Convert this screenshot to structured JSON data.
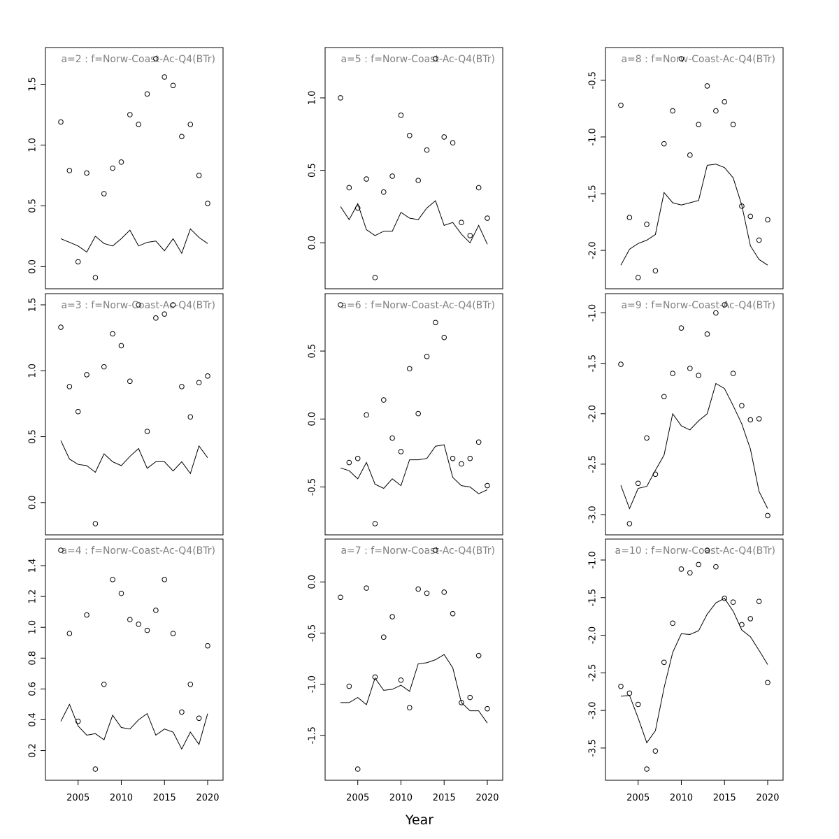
{
  "figure": {
    "xlabel": "Year"
  },
  "colors": {
    "axis": "#000000",
    "panel_title": "#808080",
    "line": "#000000",
    "points": "#000000"
  },
  "chart_data": [
    {
      "type": "scatter+line",
      "title": "a=2  :  f=Norw-Coast-Ac-Q4(BTr)",
      "x": [
        2003,
        2004,
        2005,
        2006,
        2007,
        2008,
        2009,
        2010,
        2011,
        2012,
        2013,
        2014,
        2015,
        2016,
        2017,
        2018,
        2019,
        2020
      ],
      "points": [
        1.19,
        0.79,
        0.04,
        0.77,
        -0.09,
        0.6,
        0.81,
        0.86,
        1.25,
        1.17,
        1.42,
        1.71,
        1.56,
        1.49,
        1.07,
        1.17,
        0.75,
        0.52
      ],
      "line": [
        0.23,
        0.2,
        0.17,
        0.12,
        0.25,
        0.19,
        0.17,
        0.23,
        0.3,
        0.17,
        0.2,
        0.21,
        0.13,
        0.23,
        0.11,
        0.31,
        0.24,
        0.19
      ],
      "yticks": [
        "0.0",
        "0.5",
        "1.0",
        "1.5"
      ]
    },
    {
      "type": "scatter+line",
      "title": "a=5  :  f=Norw-Coast-Ac-Q4(BTr)",
      "x": [
        2003,
        2004,
        2005,
        2006,
        2007,
        2008,
        2009,
        2010,
        2011,
        2012,
        2013,
        2014,
        2015,
        2016,
        2017,
        2018,
        2019,
        2020
      ],
      "points": [
        1.0,
        0.38,
        0.24,
        0.44,
        -0.24,
        0.35,
        0.46,
        0.88,
        0.74,
        0.43,
        0.64,
        1.27,
        0.73,
        0.69,
        0.14,
        0.05,
        0.38,
        0.17
      ],
      "line": [
        0.25,
        0.16,
        0.27,
        0.09,
        0.05,
        0.08,
        0.08,
        0.21,
        0.17,
        0.16,
        0.24,
        0.29,
        0.12,
        0.14,
        0.06,
        0.0,
        0.12,
        -0.01
      ],
      "yticks": [
        "0.0",
        "0.5",
        "1.0"
      ]
    },
    {
      "type": "scatter+line",
      "title": "a=8  :  f=Norw-Coast-Ac-Q4(BTr)",
      "x": [
        2003,
        2004,
        2005,
        2006,
        2007,
        2008,
        2009,
        2010,
        2011,
        2012,
        2013,
        2014,
        2015,
        2016,
        2017,
        2018,
        2019,
        2020
      ],
      "points": [
        -0.72,
        -1.71,
        -2.24,
        -1.77,
        -2.18,
        -1.06,
        -0.77,
        -0.31,
        -1.16,
        -0.89,
        -0.55,
        -0.77,
        -0.69,
        -0.89,
        -1.61,
        -1.7,
        -1.91,
        -1.73
      ],
      "line": [
        -2.13,
        -1.99,
        -1.94,
        -1.91,
        -1.86,
        -1.49,
        -1.58,
        -1.6,
        -1.58,
        -1.56,
        -1.25,
        -1.24,
        -1.27,
        -1.36,
        -1.6,
        -1.96,
        -2.08,
        -2.13
      ],
      "yticks": [
        "-2.0",
        "-1.5",
        "-1.0",
        "-0.5"
      ]
    },
    {
      "type": "scatter+line",
      "title": "a=3  :  f=Norw-Coast-Ac-Q4(BTr)",
      "x": [
        2003,
        2004,
        2005,
        2006,
        2007,
        2008,
        2009,
        2010,
        2011,
        2012,
        2013,
        2014,
        2015,
        2016,
        2017,
        2018,
        2019,
        2020
      ],
      "points": [
        1.33,
        0.88,
        0.69,
        0.97,
        -0.16,
        1.03,
        1.28,
        1.19,
        0.92,
        1.5,
        0.54,
        1.4,
        1.43,
        1.5,
        0.88,
        0.65,
        0.91,
        0.96
      ],
      "line": [
        0.47,
        0.33,
        0.29,
        0.28,
        0.23,
        0.37,
        0.31,
        0.28,
        0.35,
        0.41,
        0.26,
        0.31,
        0.31,
        0.24,
        0.31,
        0.22,
        0.43,
        0.34
      ],
      "yticks": [
        "0.0",
        "0.5",
        "1.0",
        "1.5"
      ]
    },
    {
      "type": "scatter+line",
      "title": "a=6  :  f=Norw-Coast-Ac-Q4(BTr)",
      "x": [
        2003,
        2004,
        2005,
        2006,
        2007,
        2008,
        2009,
        2010,
        2011,
        2012,
        2013,
        2014,
        2015,
        2016,
        2017,
        2018,
        2019,
        2020
      ],
      "points": [
        0.84,
        -0.32,
        -0.29,
        0.03,
        -0.77,
        0.14,
        -0.14,
        -0.24,
        0.37,
        0.04,
        0.46,
        0.71,
        0.6,
        -0.29,
        -0.33,
        -0.29,
        -0.17,
        -0.49
      ],
      "line": [
        -0.36,
        -0.38,
        -0.44,
        -0.32,
        -0.48,
        -0.51,
        -0.44,
        -0.49,
        -0.3,
        -0.3,
        -0.29,
        -0.2,
        -0.19,
        -0.43,
        -0.49,
        -0.5,
        -0.55,
        -0.52
      ],
      "yticks": [
        "-0.5",
        "0.0",
        "0.5"
      ]
    },
    {
      "type": "scatter+line",
      "title": "a=9  :  f=Norw-Coast-Ac-Q4(BTr)",
      "x": [
        2003,
        2004,
        2005,
        2006,
        2007,
        2008,
        2009,
        2010,
        2011,
        2012,
        2013,
        2014,
        2015,
        2016,
        2017,
        2018,
        2019,
        2020
      ],
      "points": [
        -1.51,
        -3.09,
        -2.69,
        -2.24,
        -2.6,
        -1.83,
        -1.6,
        -1.15,
        -1.55,
        -1.62,
        -1.21,
        -1.0,
        -0.92,
        -1.6,
        -1.92,
        -2.06,
        -2.05,
        -3.01
      ],
      "line": [
        -2.71,
        -2.94,
        -2.74,
        -2.72,
        -2.56,
        -2.41,
        -2.0,
        -2.12,
        -2.16,
        -2.07,
        -2.0,
        -1.7,
        -1.75,
        -1.92,
        -2.1,
        -2.35,
        -2.77,
        -2.94
      ],
      "yticks": [
        "-3.0",
        "-2.5",
        "-2.0",
        "-1.5",
        "-1.0"
      ]
    },
    {
      "type": "scatter+line",
      "title": "a=4  :  f=Norw-Coast-Ac-Q4(BTr)",
      "x": [
        2003,
        2004,
        2005,
        2006,
        2007,
        2008,
        2009,
        2010,
        2011,
        2012,
        2013,
        2014,
        2015,
        2016,
        2017,
        2018,
        2019,
        2020
      ],
      "points": [
        1.5,
        0.96,
        0.39,
        1.08,
        0.08,
        0.63,
        1.31,
        1.22,
        1.05,
        1.02,
        0.98,
        1.11,
        1.31,
        0.96,
        0.45,
        0.63,
        0.41,
        0.88
      ],
      "line": [
        0.39,
        0.5,
        0.36,
        0.3,
        0.31,
        0.27,
        0.43,
        0.35,
        0.34,
        0.4,
        0.44,
        0.3,
        0.34,
        0.32,
        0.21,
        0.32,
        0.24,
        0.44
      ],
      "yticks": [
        "0.2",
        "0.4",
        "0.6",
        "0.8",
        "1.0",
        "1.2",
        "1.4"
      ]
    },
    {
      "type": "scatter+line",
      "title": "a=7  :  f=Norw-Coast-Ac-Q4(BTr)",
      "x": [
        2003,
        2004,
        2005,
        2006,
        2007,
        2008,
        2009,
        2010,
        2011,
        2012,
        2013,
        2014,
        2015,
        2016,
        2017,
        2018,
        2019,
        2020
      ],
      "points": [
        -0.15,
        -1.02,
        -1.83,
        -0.06,
        -0.93,
        -0.54,
        -0.34,
        -0.96,
        -1.23,
        -0.07,
        -0.11,
        0.31,
        -0.1,
        -0.31,
        -1.18,
        -1.13,
        -0.72,
        -1.24
      ],
      "line": [
        -1.18,
        -1.18,
        -1.13,
        -1.2,
        -0.94,
        -1.06,
        -1.05,
        -1.01,
        -1.07,
        -0.8,
        -0.79,
        -0.76,
        -0.71,
        -0.84,
        -1.18,
        -1.26,
        -1.26,
        -1.38
      ],
      "yticks": [
        "-1.5",
        "-1.0",
        "-0.5",
        "0.0"
      ]
    },
    {
      "type": "scatter+line",
      "title": "a=10  :  f=Norw-Coast-Ac-Q4(BTr)",
      "x": [
        2003,
        2004,
        2005,
        2006,
        2007,
        2008,
        2009,
        2010,
        2011,
        2012,
        2013,
        2014,
        2015,
        2016,
        2017,
        2018,
        2019,
        2020
      ],
      "points": [
        -2.68,
        -2.77,
        -2.92,
        -3.78,
        -3.54,
        -2.36,
        -1.84,
        -1.12,
        -1.17,
        -1.06,
        -0.87,
        -1.09,
        -1.51,
        -1.56,
        -1.86,
        -1.78,
        -1.55,
        -2.63
      ],
      "line": [
        -2.81,
        -2.8,
        -3.1,
        -3.43,
        -3.27,
        -2.7,
        -2.23,
        -1.98,
        -1.99,
        -1.94,
        -1.72,
        -1.57,
        -1.51,
        -1.68,
        -1.93,
        -2.02,
        -2.2,
        -2.39
      ],
      "yticks": [
        "-3.5",
        "-3.0",
        "-2.5",
        "-2.0",
        "-1.5",
        "-1.0"
      ]
    }
  ],
  "xticks": [
    "2005",
    "2010",
    "2015",
    "2020"
  ]
}
